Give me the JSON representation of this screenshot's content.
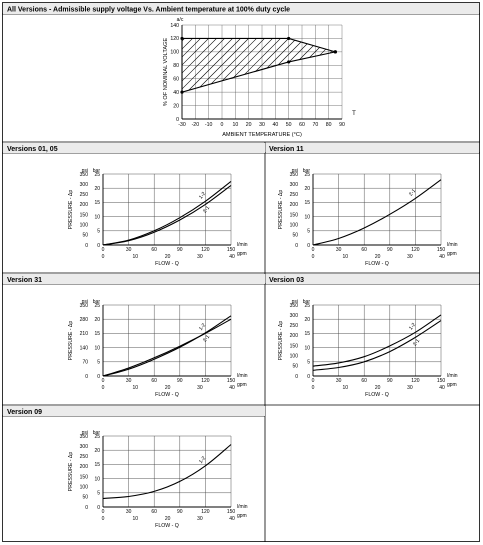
{
  "top_section": {
    "header": "All Versions - Admissible supply voltage Vs. Ambient temperature at 100% duty cycle"
  },
  "panels": [
    {
      "header": "Versions 01, 05"
    },
    {
      "header": "Version 11"
    },
    {
      "header": "Version 31"
    },
    {
      "header": "Version 03"
    },
    {
      "header": "Version 09"
    }
  ],
  "chart_data": [
    {
      "type": "area",
      "title": "All Versions - Admissible supply voltage Vs. Ambient temperature at 100% duty cycle",
      "xlabel": "AMBIENT TEMPERATURE (°C)",
      "x_axis_letter": "T",
      "ylabel": "% OF NOMINAL VOLTAGE",
      "y_unit": "a/c",
      "xlim": [
        -30,
        90
      ],
      "ylim": [
        0,
        140
      ],
      "x_ticks": [
        "-30",
        "-20",
        "-10",
        "0",
        "10",
        "20",
        "30",
        "40",
        "50",
        "60",
        "70",
        "80",
        "90"
      ],
      "y_ticks": [
        "0",
        "20",
        "40",
        "60",
        "80",
        "100",
        "120",
        "140"
      ],
      "grid": true,
      "hatched_region": true,
      "series": [
        {
          "x": [
            -30,
            50,
            85
          ],
          "y": [
            120,
            120,
            100
          ]
        },
        {
          "x": [
            -30,
            50,
            85
          ],
          "y": [
            40,
            85,
            100
          ]
        }
      ]
    },
    {
      "type": "line",
      "title": "Versions 01, 05",
      "xlabel": "FLOW - Q",
      "ylabel": "PRESSURE - Δp",
      "x_unit_primary": "l/min",
      "x_unit_secondary": "gpm",
      "y_unit_primary": "psi",
      "y_unit_secondary": "bar",
      "xlim": [
        0,
        150
      ],
      "ylim_bar": [
        0,
        25
      ],
      "x_ticks_primary": [
        "0",
        "30",
        "60",
        "90",
        "120",
        "150"
      ],
      "x_ticks_secondary": [
        "0",
        "10",
        "20",
        "30",
        "40"
      ],
      "y_ticks_primary": [
        "0",
        "5",
        "10",
        "15",
        "20",
        "25"
      ],
      "y_ticks_secondary": [
        "0",
        "50",
        "100",
        "150",
        "200",
        "250",
        "300",
        "350"
      ],
      "grid": true,
      "series": [
        {
          "name": "1-2",
          "x": [
            0,
            30,
            60,
            90,
            120,
            150
          ],
          "y": [
            0,
            1.7,
            5,
            9.6,
            15.4,
            22.4
          ]
        },
        {
          "name": "2-1",
          "x": [
            0,
            30,
            60,
            90,
            120,
            150
          ],
          "y": [
            0,
            1.5,
            4.5,
            8.8,
            14.3,
            21
          ]
        }
      ]
    },
    {
      "type": "line",
      "title": "Version 11",
      "xlabel": "FLOW - Q",
      "ylabel": "PRESSURE - Δp",
      "x_unit_primary": "l/min",
      "x_unit_secondary": "gpm",
      "y_unit_primary": "psi",
      "y_unit_secondary": "bar",
      "xlim": [
        0,
        150
      ],
      "ylim_bar": [
        0,
        25
      ],
      "x_ticks_primary": [
        "0",
        "30",
        "60",
        "90",
        "120",
        "150"
      ],
      "x_ticks_secondary": [
        "0",
        "10",
        "20",
        "30",
        "40"
      ],
      "y_ticks_primary": [
        "0",
        "5",
        "10",
        "15",
        "20",
        "25"
      ],
      "y_ticks_secondary": [
        "0",
        "50",
        "100",
        "150",
        "200",
        "250",
        "300",
        "350"
      ],
      "grid": true,
      "series": [
        {
          "name": "2-1",
          "x": [
            0,
            30,
            60,
            90,
            120,
            150
          ],
          "y": [
            0,
            2.3,
            6,
            10.8,
            16.4,
            23
          ]
        }
      ]
    },
    {
      "type": "line",
      "title": "Version 31",
      "xlabel": "FLOW - Q",
      "ylabel": "PRESSURE - Δp",
      "x_unit_primary": "l/min",
      "x_unit_secondary": "gpm",
      "y_unit_primary": "psi",
      "y_unit_secondary": "bar",
      "xlim": [
        0,
        150
      ],
      "ylim_bar": [
        0,
        25
      ],
      "x_ticks_primary": [
        "0",
        "30",
        "60",
        "90",
        "120",
        "150"
      ],
      "x_ticks_secondary": [
        "0",
        "10",
        "20",
        "30",
        "40"
      ],
      "y_ticks_primary": [
        "0",
        "5",
        "10",
        "15",
        "20",
        "25"
      ],
      "y_ticks_secondary": [
        "0",
        "70",
        "140",
        "210",
        "280",
        "350"
      ],
      "grid": true,
      "series": [
        {
          "name": "1-2",
          "x": [
            0,
            30,
            60,
            90,
            120,
            150
          ],
          "y": [
            0,
            2.4,
            5.9,
            10.1,
            15.2,
            21.2
          ]
        },
        {
          "name": "2-1",
          "x": [
            0,
            30,
            60,
            90,
            120,
            150
          ],
          "y": [
            0,
            2.8,
            6.4,
            10.5,
            15,
            20
          ]
        }
      ]
    },
    {
      "type": "line",
      "title": "Version 03",
      "xlabel": "FLOW - Q",
      "ylabel": "PRESSURE - Δp",
      "x_unit_primary": "l/min",
      "x_unit_secondary": "gpm",
      "y_unit_primary": "psi",
      "y_unit_secondary": "bar",
      "xlim": [
        0,
        150
      ],
      "ylim_bar": [
        0,
        25
      ],
      "x_ticks_primary": [
        "0",
        "30",
        "60",
        "90",
        "120",
        "150"
      ],
      "x_ticks_secondary": [
        "0",
        "10",
        "20",
        "30",
        "40"
      ],
      "y_ticks_primary": [
        "0",
        "5",
        "10",
        "15",
        "20",
        "25"
      ],
      "y_ticks_secondary": [
        "0",
        "50",
        "100",
        "150",
        "200",
        "250",
        "300",
        "350"
      ],
      "grid": true,
      "series": [
        {
          "name": "1-2",
          "x": [
            0,
            30,
            60,
            90,
            120,
            150
          ],
          "y": [
            3.5,
            4.6,
            6.8,
            10.6,
            15.4,
            21.5
          ]
        },
        {
          "name": "2-1",
          "x": [
            0,
            30,
            60,
            90,
            120,
            150
          ],
          "y": [
            2,
            3,
            5,
            8.6,
            13.6,
            19.5
          ]
        }
      ]
    },
    {
      "type": "line",
      "title": "Version 09",
      "xlabel": "FLOW - Q",
      "ylabel": "PRESSURE - Δp",
      "x_unit_primary": "l/min",
      "x_unit_secondary": "gpm",
      "y_unit_primary": "psi",
      "y_unit_secondary": "bar",
      "xlim": [
        0,
        150
      ],
      "ylim_bar": [
        0,
        25
      ],
      "x_ticks_primary": [
        "0",
        "30",
        "60",
        "90",
        "120",
        "150"
      ],
      "x_ticks_secondary": [
        "0",
        "10",
        "20",
        "30",
        "40"
      ],
      "y_ticks_primary": [
        "0",
        "5",
        "10",
        "15",
        "20",
        "25"
      ],
      "y_ticks_secondary": [
        "0",
        "50",
        "100",
        "150",
        "200",
        "250",
        "300",
        "350"
      ],
      "grid": true,
      "series": [
        {
          "name": "1-2",
          "x": [
            0,
            30,
            60,
            90,
            120,
            150
          ],
          "y": [
            3,
            3.7,
            5.5,
            9,
            14.5,
            22
          ]
        }
      ]
    }
  ]
}
